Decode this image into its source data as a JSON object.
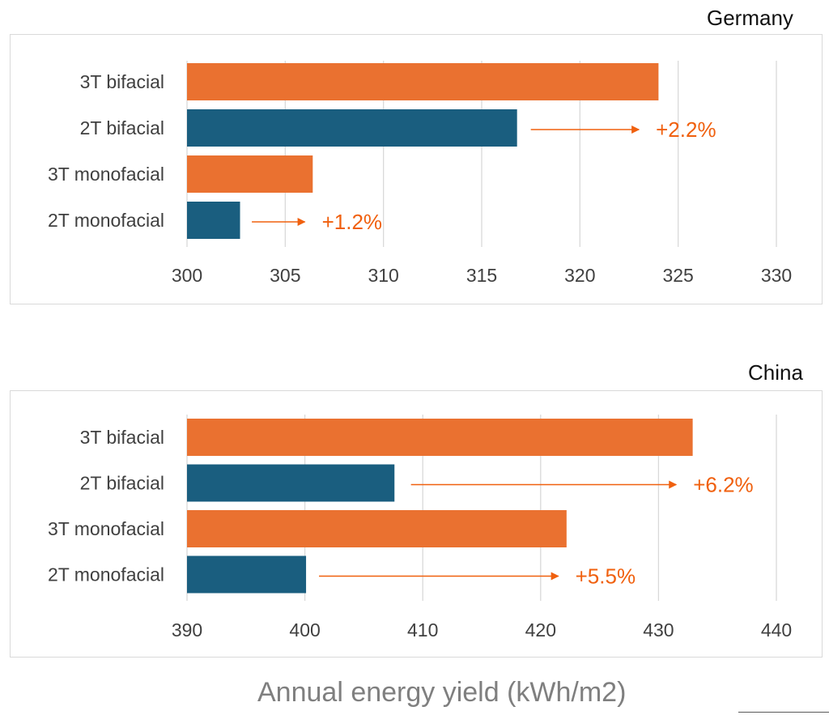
{
  "colors": {
    "three_terminal": "#ea7130",
    "two_terminal": "#1a5e7f",
    "annotation": "#f0600e",
    "gridline": "#d9d9d9",
    "text": "#404040"
  },
  "xlabel": "Annual energy yield (kWh/m2)",
  "chart_data": [
    {
      "type": "bar",
      "orientation": "horizontal",
      "title": "Germany",
      "categories": [
        "3T bifacial",
        "2T bifacial",
        "3T monofacial",
        "2T monofacial"
      ],
      "values": [
        324.0,
        316.8,
        306.4,
        302.7
      ],
      "bar_colors": [
        "three_terminal",
        "two_terminal",
        "three_terminal",
        "two_terminal"
      ],
      "xlim": [
        300,
        330
      ],
      "xticks": [
        "300",
        "305",
        "310",
        "315",
        "320",
        "325",
        "330"
      ],
      "grid": "vertical",
      "annotations": [
        {
          "category": "2T bifacial",
          "text": "+2.2%",
          "arrow_from": 317.5,
          "arrow_to": 323.0
        },
        {
          "category": "2T monofacial",
          "text": "+1.2%",
          "arrow_from": 303.3,
          "arrow_to": 306.0
        }
      ]
    },
    {
      "type": "bar",
      "orientation": "horizontal",
      "title": "China",
      "categories": [
        "3T bifacial",
        "2T bifacial",
        "3T monofacial",
        "2T monofacial"
      ],
      "values": [
        432.9,
        407.6,
        422.2,
        400.1
      ],
      "bar_colors": [
        "three_terminal",
        "two_terminal",
        "three_terminal",
        "two_terminal"
      ],
      "xlim": [
        390,
        440
      ],
      "xticks": [
        "390",
        "400",
        "410",
        "420",
        "430",
        "440"
      ],
      "grid": "vertical",
      "annotations": [
        {
          "category": "2T bifacial",
          "text": "+6.2%",
          "arrow_from": 409.0,
          "arrow_to": 431.5
        },
        {
          "category": "2T monofacial",
          "text": "+5.5%",
          "arrow_from": 401.2,
          "arrow_to": 421.5
        }
      ]
    }
  ]
}
